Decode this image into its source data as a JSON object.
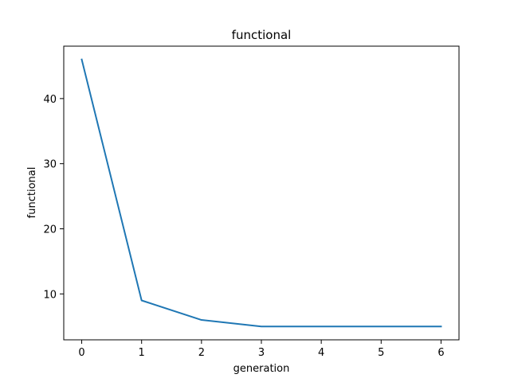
{
  "chart_data": {
    "type": "line",
    "title": "functional",
    "xlabel": "generation",
    "ylabel": "functional",
    "x": [
      0,
      1,
      2,
      3,
      4,
      5,
      6
    ],
    "series": [
      {
        "values": [
          46,
          9,
          6,
          5,
          5,
          5,
          5
        ],
        "color": "#1f77b4"
      }
    ],
    "xlim": [
      -0.3,
      6.3
    ],
    "ylim": [
      2.95,
      48.05
    ],
    "xticks": [
      0,
      1,
      2,
      3,
      4,
      5,
      6
    ],
    "xtick_labels": [
      "0",
      "1",
      "2",
      "3",
      "4",
      "5",
      "6"
    ],
    "yticks": [
      10,
      20,
      30,
      40
    ],
    "ytick_labels": [
      "10",
      "20",
      "30",
      "40"
    ],
    "grid": false,
    "legend": "none"
  }
}
